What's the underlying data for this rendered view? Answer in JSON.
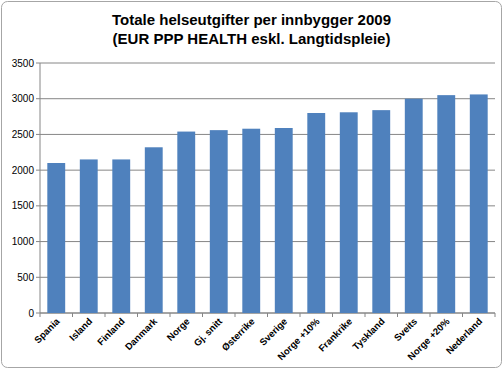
{
  "chart_data": {
    "type": "bar",
    "title": "Totale helseutgifter per innbygger 2009",
    "subtitle": "(EUR PPP HEALTH eskl. Langtidspleie)",
    "categories": [
      "Spania",
      "Island",
      "Finland",
      "Danmark",
      "Norge",
      "Gj. snitt",
      "Østerrike",
      "Sverige",
      "Norge +10%",
      "Frankrike",
      "Tyskland",
      "Sveits",
      "Norge +20%",
      "Nederland"
    ],
    "values": [
      2100,
      2150,
      2150,
      2320,
      2540,
      2560,
      2580,
      2590,
      2800,
      2810,
      2840,
      3000,
      3050,
      3060
    ],
    "color": "#4f81bd",
    "ylim": [
      0,
      3500
    ],
    "yticks": [
      0,
      500,
      1000,
      1500,
      2000,
      2500,
      3000,
      3500
    ],
    "grid": true
  }
}
